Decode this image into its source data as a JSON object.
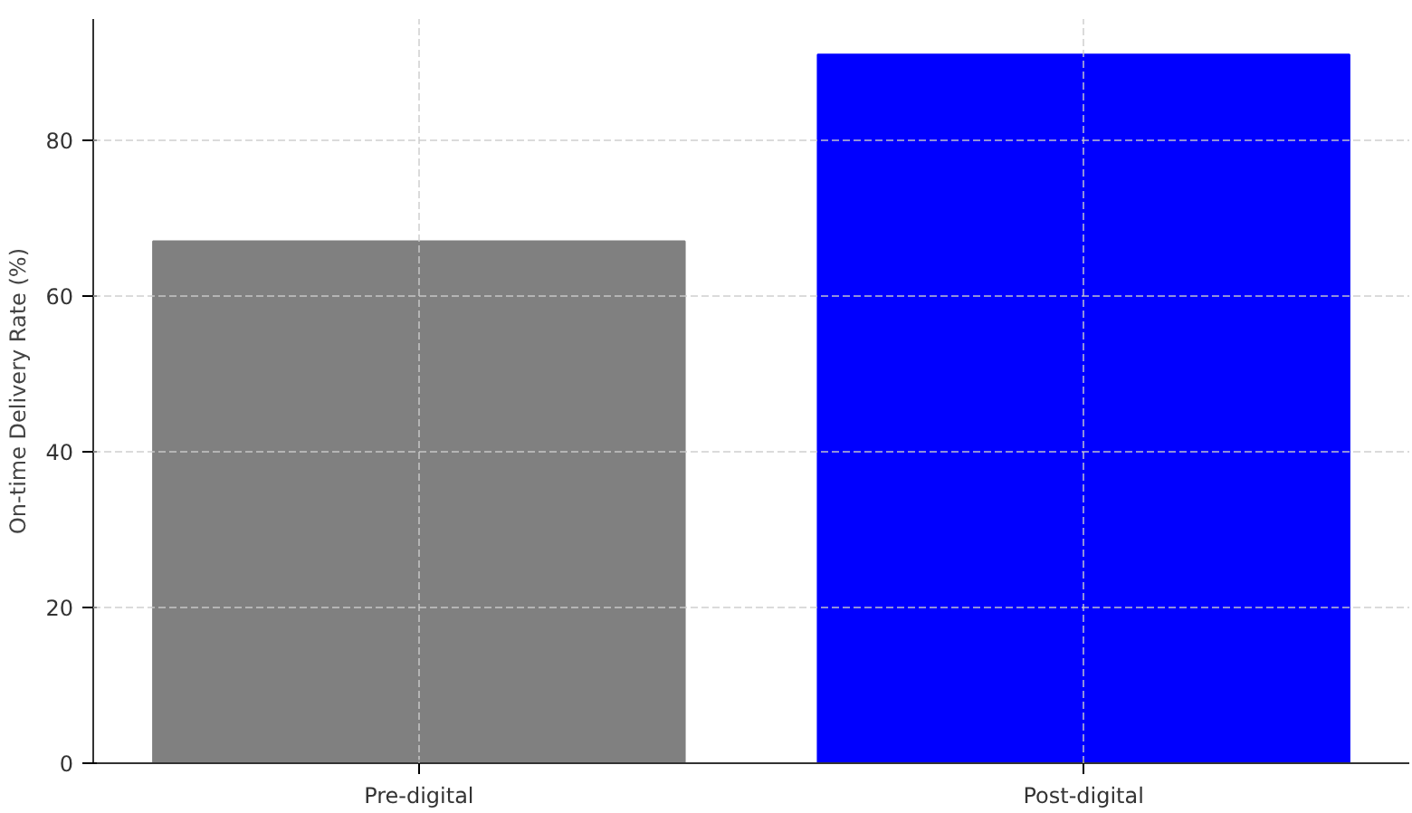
{
  "chart_data": {
    "type": "bar",
    "ylabel": "On-time Delivery Rate (%)",
    "categories": [
      "Pre-digital",
      "Post-digital"
    ],
    "values": [
      67,
      91
    ],
    "colors": [
      "#808080",
      "#0000ff"
    ],
    "ylim": [
      0,
      95.55
    ],
    "yticks": [
      0,
      20,
      40,
      60,
      80
    ],
    "grid": true
  }
}
